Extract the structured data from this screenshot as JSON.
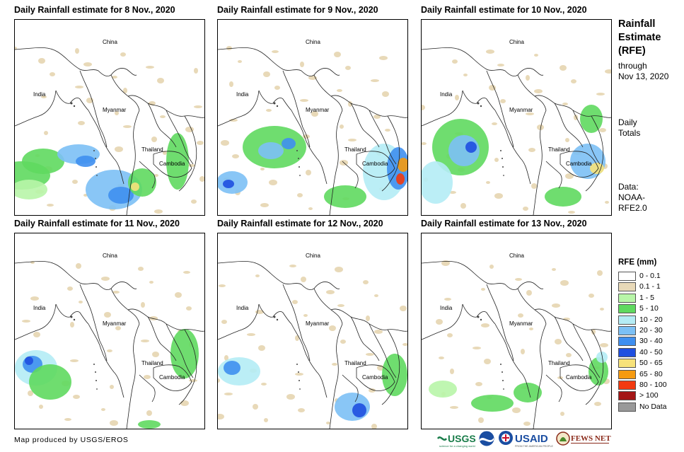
{
  "panels": [
    {
      "title": "Daily Rainfall estimate for 8 Nov., 2020"
    },
    {
      "title": "Daily Rainfall estimate for 9 Nov., 2020"
    },
    {
      "title": "Daily Rainfall estimate for 10 Nov., 2020"
    },
    {
      "title": "Daily Rainfall estimate for 11 Nov., 2020"
    },
    {
      "title": "Daily Rainfall estimate for 12 Nov., 2020"
    },
    {
      "title": "Daily Rainfall estimate for 13 Nov., 2020"
    }
  ],
  "map_labels": {
    "china": "China",
    "india": "India",
    "myanmar": "Myanmar",
    "thailand": "Thailand",
    "cambodia": "Cambodia"
  },
  "sidebar": {
    "title_line1": "Rainfall",
    "title_line2": "Estimate",
    "title_line3": "(RFE)",
    "through_line1": "through",
    "through_line2": "Nov 13, 2020",
    "daily_line1": "Daily",
    "daily_line2": "Totals",
    "data_line1": "Data:",
    "data_line2": "NOAA-",
    "data_line3": "RFE2.0"
  },
  "legend": {
    "title": "RFE (mm)",
    "items": [
      {
        "label": "0 - 0.1",
        "color": "#ffffff"
      },
      {
        "label": "0.1 - 1",
        "color": "#e8d9b8"
      },
      {
        "label": "1 - 5",
        "color": "#b8f5a8"
      },
      {
        "label": "5 - 10",
        "color": "#5fd95f"
      },
      {
        "label": "10 - 20",
        "color": "#b4ecf5"
      },
      {
        "label": "20 - 30",
        "color": "#7cc0f5"
      },
      {
        "label": "30 - 40",
        "color": "#3f8ff0"
      },
      {
        "label": "40 - 50",
        "color": "#1f4fe0"
      },
      {
        "label": "50 - 65",
        "color": "#f7e27a"
      },
      {
        "label": "65 - 80",
        "color": "#f59a10"
      },
      {
        "label": "80 - 100",
        "color": "#f23a10"
      },
      {
        "label": "> 100",
        "color": "#a41616"
      },
      {
        "label": "No Data",
        "color": "#999999"
      }
    ]
  },
  "footer": {
    "credit": "Map produced by USGS/EROS"
  },
  "logos": {
    "usgs": "USGS",
    "usaid": "USAID",
    "fewsnet": "FEWS NET"
  }
}
